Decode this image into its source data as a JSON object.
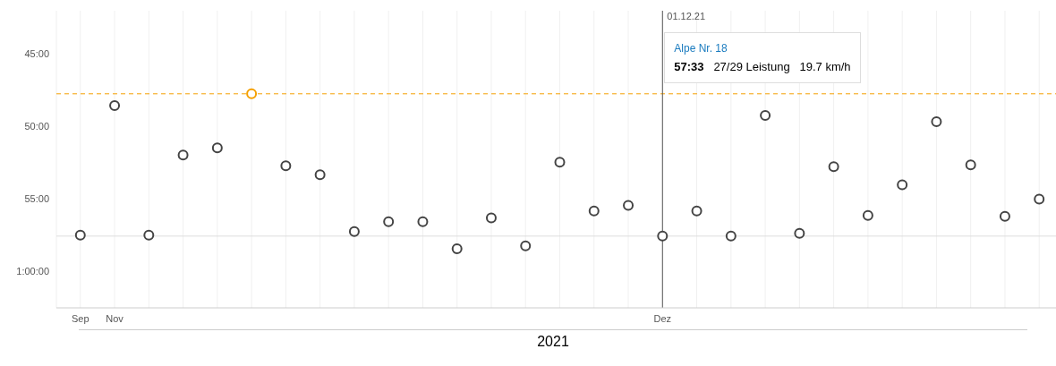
{
  "chart_data": {
    "type": "scatter",
    "xlabel": "2021",
    "categories": [
      "Sep",
      "Nov",
      null,
      null,
      null,
      null,
      null,
      null,
      null,
      null,
      null,
      null,
      null,
      null,
      null,
      null,
      null,
      "Dez",
      null,
      null,
      null,
      null,
      null,
      null,
      null,
      null,
      null,
      null,
      null
    ],
    "values": [
      57.48,
      48.54,
      57.48,
      51.96,
      51.46,
      47.73,
      52.7,
      53.32,
      57.24,
      56.55,
      56.55,
      58.42,
      56.3,
      58.23,
      52.45,
      55.81,
      55.43,
      57.55,
      55.81,
      57.55,
      49.22,
      57.36,
      52.76,
      56.12,
      54.01,
      49.66,
      52.64,
      56.18,
      55.0
    ],
    "colors": [
      "#444444",
      "#444444",
      "#444444",
      "#444444",
      "#444444",
      "#f5a000",
      "#444444",
      "#444444",
      "#444444",
      "#444444",
      "#444444",
      "#444444",
      "#444444",
      "#444444",
      "#444444",
      "#444444",
      "#444444",
      "#444444",
      "#444444",
      "#444444",
      "#444444",
      "#444444",
      "#444444",
      "#444444",
      "#444444",
      "#444444",
      "#444444",
      "#444444",
      "#444444"
    ],
    "ylim": [
      62.5,
      42
    ],
    "yticks": [
      {
        "value": 45,
        "label": "45:00"
      },
      {
        "value": 50,
        "label": "50:00"
      },
      {
        "value": 55,
        "label": "55:00"
      },
      {
        "value": 60,
        "label": "1:00:00"
      }
    ],
    "ref_lines": [
      {
        "axis": "y",
        "value": 47.73,
        "color": "#f5a000",
        "line_style": "dashed"
      },
      {
        "axis": "y",
        "value": 57.55,
        "color": "#dddddd",
        "line_style": "solid"
      },
      {
        "axis": "x",
        "value": "Dez",
        "color": "#555555",
        "line_style": "solid"
      }
    ],
    "annotations": [
      "01.12.21",
      "Alpe Nr. 18",
      "57:33",
      "27/29 Leistung",
      "19.7 km/h"
    ],
    "grid": "x",
    "marker": "circle"
  }
}
